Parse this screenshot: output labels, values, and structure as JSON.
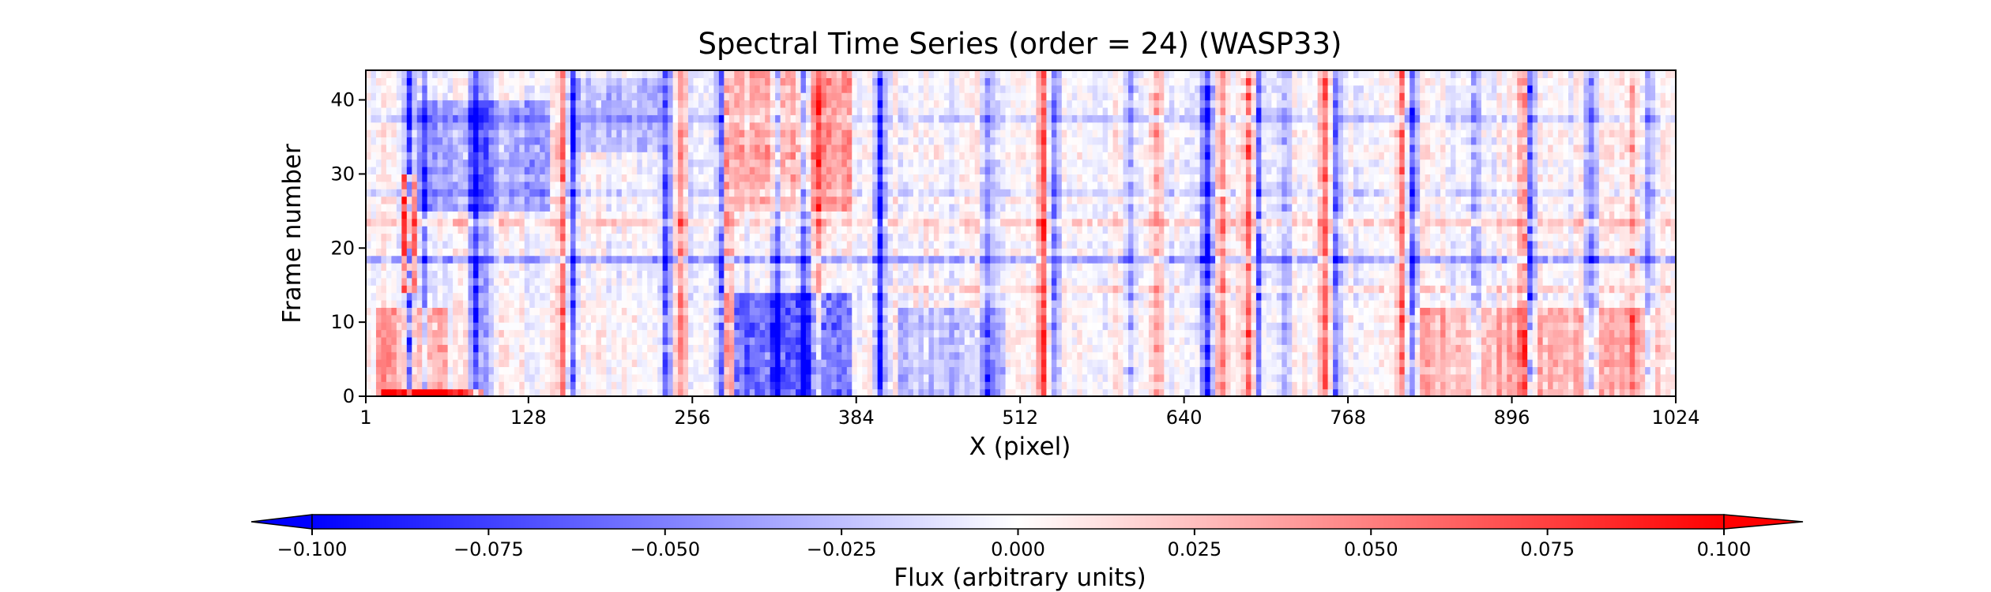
{
  "chart_data": {
    "type": "heatmap",
    "title": "Spectral Time Series (order = 24) (WASP33)",
    "xlabel": "X (pixel)",
    "ylabel": "Frame number",
    "xlim": [
      1,
      1024
    ],
    "ylim": [
      0,
      44
    ],
    "xticks": [
      1,
      128,
      256,
      384,
      512,
      640,
      768,
      896,
      1024
    ],
    "yticks": [
      0,
      10,
      20,
      30,
      40
    ],
    "grid": false,
    "n_frames": 44,
    "colormap": "bwr",
    "colors": {
      "low": "#0000ff",
      "mid": "#ffffff",
      "high": "#ff0000"
    },
    "colorbar": {
      "label": "Flux (arbitrary units)",
      "range": [
        -0.1,
        0.1
      ],
      "extend": "both",
      "orientation": "horizontal",
      "placement": "bottom",
      "ticks": [
        "−0.100",
        "−0.075",
        "−0.050",
        "−0.025",
        "0.000",
        "0.025",
        "0.050",
        "0.075",
        "0.100"
      ]
    },
    "columns": [
      {
        "x": 34,
        "v": -0.11
      },
      {
        "x": 44,
        "v": -0.05
      },
      {
        "x": 85,
        "v": -0.09
      },
      {
        "x": 95,
        "v": -0.04
      },
      {
        "x": 152,
        "v": 0.06
      },
      {
        "x": 160,
        "v": -0.08
      },
      {
        "x": 235,
        "v": -0.07
      },
      {
        "x": 245,
        "v": 0.06
      },
      {
        "x": 278,
        "v": -0.09
      },
      {
        "x": 282,
        "v": 0.07
      },
      {
        "x": 322,
        "v": -0.06
      },
      {
        "x": 340,
        "v": -0.08
      },
      {
        "x": 355,
        "v": 0.05
      },
      {
        "x": 404,
        "v": -0.11
      },
      {
        "x": 488,
        "v": -0.06
      },
      {
        "x": 531,
        "v": 0.08
      },
      {
        "x": 538,
        "v": -0.06
      },
      {
        "x": 597,
        "v": -0.05
      },
      {
        "x": 617,
        "v": 0.05
      },
      {
        "x": 660,
        "v": -0.11
      },
      {
        "x": 669,
        "v": 0.06
      },
      {
        "x": 692,
        "v": 0.08
      },
      {
        "x": 700,
        "v": -0.07
      },
      {
        "x": 720,
        "v": -0.05
      },
      {
        "x": 753,
        "v": 0.07
      },
      {
        "x": 760,
        "v": -0.07
      },
      {
        "x": 813,
        "v": 0.07
      },
      {
        "x": 818,
        "v": -0.08
      },
      {
        "x": 868,
        "v": -0.05
      },
      {
        "x": 908,
        "v": 0.07
      },
      {
        "x": 912,
        "v": -0.09
      },
      {
        "x": 958,
        "v": -0.06
      },
      {
        "x": 990,
        "v": 0.05
      },
      {
        "x": 1005,
        "v": -0.05
      }
    ],
    "regions": [
      {
        "x0": 290,
        "x1": 380,
        "f0": 0,
        "f1": 14,
        "v": -0.07
      },
      {
        "x0": 290,
        "x1": 380,
        "f0": 25,
        "f1": 44,
        "v": 0.04
      },
      {
        "x0": 40,
        "x1": 140,
        "f0": 25,
        "f1": 40,
        "v": -0.04
      },
      {
        "x0": 160,
        "x1": 230,
        "f0": 33,
        "f1": 43,
        "v": -0.03
      },
      {
        "x0": 420,
        "x1": 500,
        "f0": 0,
        "f1": 12,
        "v": -0.03
      },
      {
        "x0": 10,
        "x1": 60,
        "f0": 0,
        "f1": 12,
        "v": 0.04
      },
      {
        "x0": 820,
        "x1": 1010,
        "f0": 0,
        "f1": 12,
        "v": 0.03
      },
      {
        "x0": 12,
        "x1": 90,
        "f0": 0,
        "f1": 1,
        "v": 0.11
      },
      {
        "x0": 28,
        "x1": 36,
        "f0": 14,
        "f1": 30,
        "v": 0.1
      }
    ],
    "frame_rows": [
      {
        "frame": 18,
        "v": -0.04,
        "x0": 1,
        "x1": 1024
      },
      {
        "frame": 23,
        "v": 0.03,
        "x0": 1,
        "x1": 1024
      },
      {
        "frame": 14,
        "v": 0.02,
        "x0": 400,
        "x1": 1024
      },
      {
        "frame": 27,
        "v": -0.02,
        "x0": 1,
        "x1": 1024
      },
      {
        "frame": 37,
        "v": -0.02,
        "x0": 1,
        "x1": 1024
      }
    ]
  }
}
